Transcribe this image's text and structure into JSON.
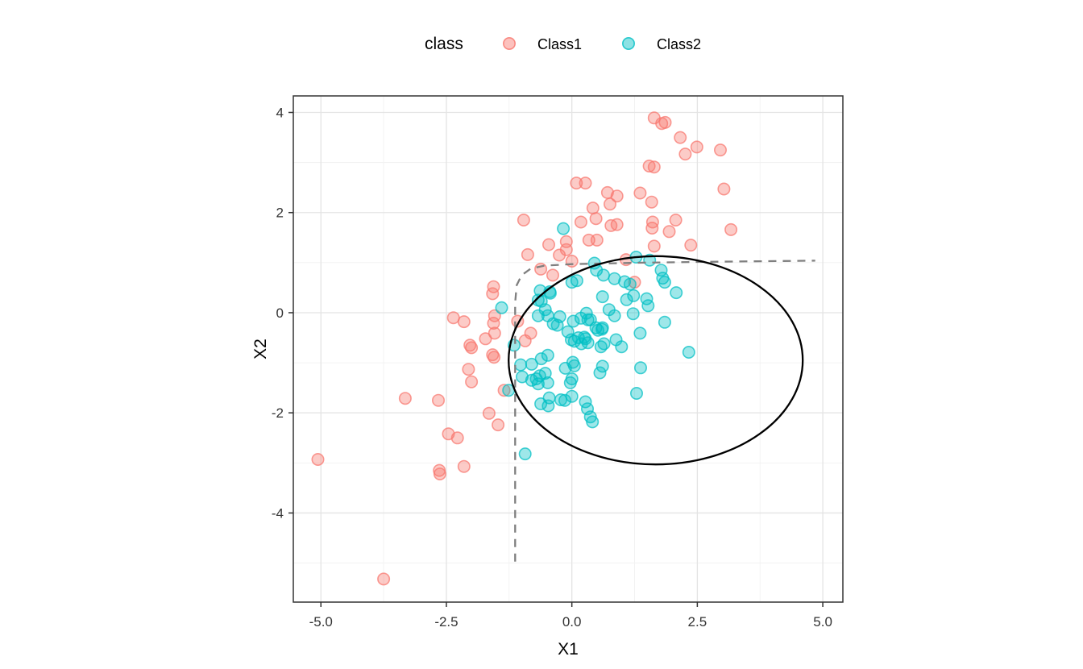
{
  "legend": {
    "title": "class",
    "items": [
      {
        "label": "Class1",
        "color": "#F8766D"
      },
      {
        "label": "Class2",
        "color": "#00BFC4"
      }
    ]
  },
  "colors": {
    "class1": "#F8766D",
    "class2": "#00BFC4",
    "panel_border": "#333333",
    "grid_major": "#e4e4e4",
    "grid_minor": "#f1f1f1",
    "ellipse_stroke": "#000000",
    "boundary_stroke": "#7f7f7f",
    "tick_text": "#333333"
  },
  "chart_data": {
    "type": "scatter",
    "title": "",
    "xlabel": "X1",
    "ylabel": "X2",
    "xlim": [
      -5.55,
      5.4
    ],
    "ylim": [
      -5.78,
      4.33
    ],
    "x_ticks": [
      -5.0,
      -2.5,
      0.0,
      2.5,
      5.0
    ],
    "x_tick_labels": [
      "-5.0",
      "-2.5",
      "0.0",
      "2.5",
      "5.0"
    ],
    "y_ticks": [
      4,
      2,
      0,
      -2,
      -4
    ],
    "y_tick_labels": [
      "4",
      "2",
      "0",
      "-2",
      "-4"
    ],
    "grid": true,
    "legend_position": "top",
    "series": [
      {
        "name": "Class1",
        "color": "#F8766D",
        "points": [
          [
            1.64,
            3.89
          ],
          [
            1.79,
            3.78
          ],
          [
            1.86,
            3.8
          ],
          [
            2.16,
            3.5
          ],
          [
            2.49,
            3.31
          ],
          [
            2.26,
            3.17
          ],
          [
            2.96,
            3.25
          ],
          [
            1.54,
            2.93
          ],
          [
            1.64,
            2.91
          ],
          [
            0.09,
            2.59
          ],
          [
            0.27,
            2.59
          ],
          [
            3.03,
            2.47
          ],
          [
            0.71,
            2.4
          ],
          [
            1.36,
            2.39
          ],
          [
            0.9,
            2.33
          ],
          [
            1.59,
            2.21
          ],
          [
            0.76,
            2.17
          ],
          [
            0.42,
            2.09
          ],
          [
            0.48,
            1.88
          ],
          [
            -0.96,
            1.85
          ],
          [
            2.07,
            1.85
          ],
          [
            0.18,
            1.81
          ],
          [
            1.61,
            1.81
          ],
          [
            0.78,
            1.74
          ],
          [
            0.9,
            1.76
          ],
          [
            1.6,
            1.69
          ],
          [
            3.17,
            1.66
          ],
          [
            1.94,
            1.62
          ],
          [
            -0.46,
            1.36
          ],
          [
            -0.11,
            1.42
          ],
          [
            0.34,
            1.45
          ],
          [
            0.5,
            1.45
          ],
          [
            2.37,
            1.35
          ],
          [
            1.64,
            1.33
          ],
          [
            -0.25,
            1.15
          ],
          [
            -0.11,
            1.26
          ],
          [
            -0.88,
            1.16
          ],
          [
            0.0,
            1.03
          ],
          [
            1.08,
            1.06
          ],
          [
            -0.62,
            0.87
          ],
          [
            -0.38,
            0.75
          ],
          [
            1.25,
            0.61
          ],
          [
            -1.56,
            0.52
          ],
          [
            -1.58,
            0.38
          ],
          [
            -1.54,
            -0.06
          ],
          [
            -2.36,
            -0.1
          ],
          [
            -2.15,
            -0.18
          ],
          [
            -1.56,
            -0.21
          ],
          [
            -1.08,
            -0.17
          ],
          [
            -1.54,
            -0.41
          ],
          [
            -0.82,
            -0.41
          ],
          [
            -1.72,
            -0.52
          ],
          [
            -0.93,
            -0.56
          ],
          [
            -2.03,
            -0.65
          ],
          [
            -2.0,
            -0.7
          ],
          [
            -1.58,
            -0.84
          ],
          [
            -1.55,
            -0.89
          ],
          [
            -2.06,
            -1.13
          ],
          [
            -2.0,
            -1.38
          ],
          [
            -1.35,
            -1.55
          ],
          [
            -3.32,
            -1.71
          ],
          [
            -2.66,
            -1.75
          ],
          [
            -1.65,
            -2.01
          ],
          [
            -1.47,
            -2.24
          ],
          [
            -2.46,
            -2.42
          ],
          [
            -2.28,
            -2.5
          ],
          [
            -5.06,
            -2.93
          ],
          [
            -2.15,
            -3.07
          ],
          [
            -2.64,
            -3.15
          ],
          [
            -2.63,
            -3.22
          ],
          [
            -3.75,
            -5.32
          ]
        ]
      },
      {
        "name": "Class2",
        "color": "#00BFC4",
        "points": [
          [
            -0.17,
            1.68
          ],
          [
            1.28,
            1.11
          ],
          [
            1.55,
            1.05
          ],
          [
            0.45,
            0.99
          ],
          [
            0.49,
            0.85
          ],
          [
            1.78,
            0.85
          ],
          [
            0.63,
            0.75
          ],
          [
            1.81,
            0.69
          ],
          [
            0.85,
            0.68
          ],
          [
            1.05,
            0.62
          ],
          [
            0.0,
            0.61
          ],
          [
            1.85,
            0.61
          ],
          [
            1.16,
            0.57
          ],
          [
            0.1,
            0.64
          ],
          [
            -0.63,
            0.44
          ],
          [
            -0.44,
            0.42
          ],
          [
            2.08,
            0.4
          ],
          [
            -0.43,
            0.39
          ],
          [
            1.23,
            0.34
          ],
          [
            0.61,
            0.32
          ],
          [
            1.49,
            0.28
          ],
          [
            1.09,
            0.26
          ],
          [
            -0.67,
            0.25
          ],
          [
            -0.61,
            0.23
          ],
          [
            1.52,
            0.14
          ],
          [
            -1.4,
            0.1
          ],
          [
            0.74,
            0.06
          ],
          [
            -0.53,
            0.06
          ],
          [
            0.29,
            -0.01
          ],
          [
            1.22,
            -0.02
          ],
          [
            -0.67,
            -0.06
          ],
          [
            -0.48,
            -0.06
          ],
          [
            0.85,
            -0.06
          ],
          [
            -0.24,
            -0.08
          ],
          [
            0.18,
            -0.11
          ],
          [
            0.32,
            -0.14
          ],
          [
            0.37,
            -0.14
          ],
          [
            0.03,
            -0.17
          ],
          [
            1.85,
            -0.19
          ],
          [
            -0.37,
            -0.22
          ],
          [
            -0.29,
            -0.25
          ],
          [
            0.48,
            -0.3
          ],
          [
            0.61,
            -0.3
          ],
          [
            0.6,
            -0.33
          ],
          [
            0.52,
            -0.35
          ],
          [
            -0.08,
            -0.38
          ],
          [
            1.36,
            -0.41
          ],
          [
            0.25,
            -0.49
          ],
          [
            0.13,
            -0.5
          ],
          [
            0.27,
            -0.52
          ],
          [
            -0.01,
            -0.54
          ],
          [
            0.88,
            -0.54
          ],
          [
            0.05,
            -0.57
          ],
          [
            0.32,
            -0.6
          ],
          [
            0.19,
            -0.62
          ],
          [
            0.64,
            -0.62
          ],
          [
            -1.15,
            -0.65
          ],
          [
            0.99,
            -0.68
          ],
          [
            0.58,
            -0.68
          ],
          [
            2.33,
            -0.79
          ],
          [
            -0.48,
            -0.85
          ],
          [
            -0.61,
            -0.92
          ],
          [
            0.02,
            -0.99
          ],
          [
            -0.8,
            -1.03
          ],
          [
            -1.02,
            -1.04
          ],
          [
            0.05,
            -1.06
          ],
          [
            0.61,
            -1.07
          ],
          [
            1.37,
            -1.1
          ],
          [
            -0.13,
            -1.11
          ],
          [
            0.56,
            -1.2
          ],
          [
            -0.53,
            -1.21
          ],
          [
            -0.64,
            -1.26
          ],
          [
            -0.99,
            -1.28
          ],
          [
            0.0,
            -1.32
          ],
          [
            -0.71,
            -1.32
          ],
          [
            -0.8,
            -1.35
          ],
          [
            -0.48,
            -1.4
          ],
          [
            -0.67,
            -1.42
          ],
          [
            -0.03,
            -1.4
          ],
          [
            -1.26,
            -1.55
          ],
          [
            1.29,
            -1.61
          ],
          [
            0.0,
            -1.67
          ],
          [
            -0.45,
            -1.7
          ],
          [
            -0.22,
            -1.74
          ],
          [
            -0.14,
            -1.75
          ],
          [
            0.27,
            -1.78
          ],
          [
            -0.62,
            -1.82
          ],
          [
            -0.47,
            -1.86
          ],
          [
            0.31,
            -1.92
          ],
          [
            0.37,
            -2.08
          ],
          [
            0.41,
            -2.18
          ],
          [
            -0.93,
            -2.82
          ]
        ]
      }
    ],
    "annotations": {
      "ellipse": {
        "center": [
          1.67,
          -0.95
        ],
        "rx": 2.93,
        "ry": 2.08
      },
      "dashed_boundary": [
        [
          -1.13,
          -4.97
        ],
        [
          -1.13,
          0.2
        ],
        [
          -1.1,
          0.55
        ],
        [
          -1.0,
          0.75
        ],
        [
          -0.82,
          0.88
        ],
        [
          -0.55,
          0.94
        ],
        [
          0.0,
          0.97
        ],
        [
          1.5,
          1.0
        ],
        [
          3.0,
          1.02
        ],
        [
          4.85,
          1.04
        ]
      ]
    }
  }
}
